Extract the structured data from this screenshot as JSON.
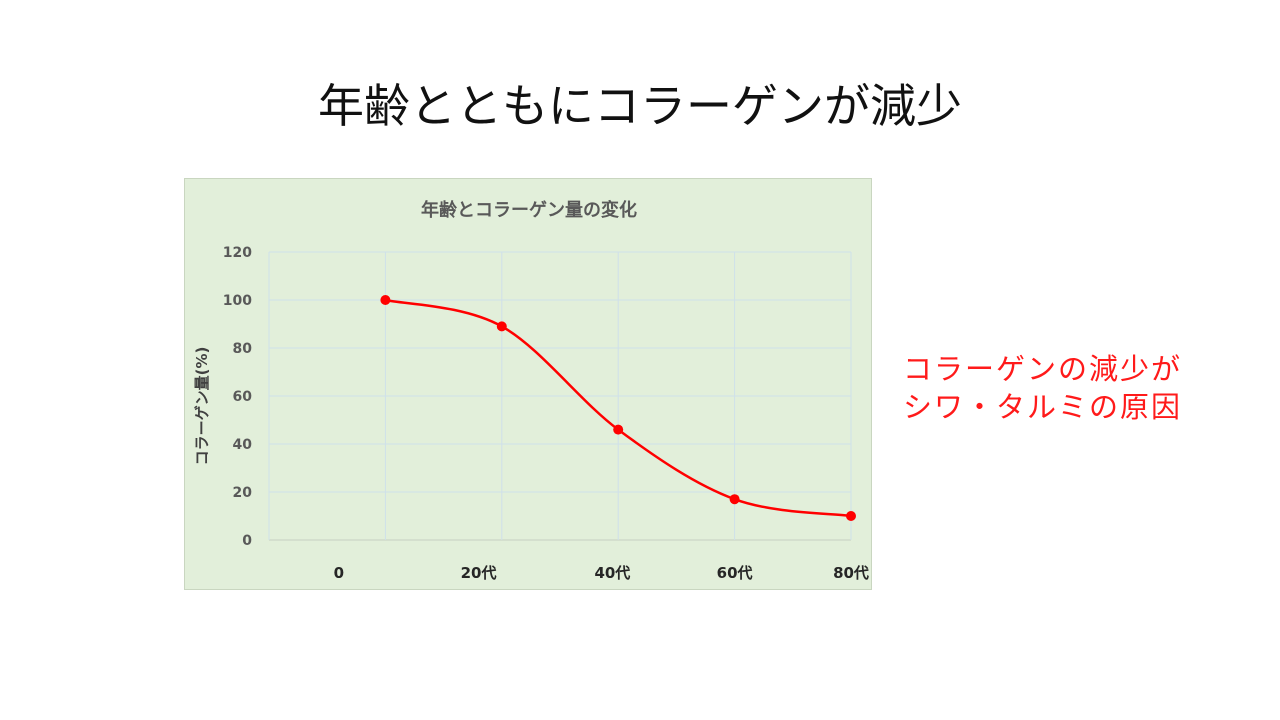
{
  "slide": {
    "title": "年齢とともにコラーゲンが減少"
  },
  "side_note": {
    "line1": "コラーゲンの減少が",
    "line2": "シワ・タルミの原因",
    "color": "#ff1a1a"
  },
  "chart_data": {
    "type": "line",
    "title": "年齢とコラーゲン量の変化",
    "xlabel": "",
    "ylabel": "コラーゲン量(%)",
    "ylim": [
      0,
      120
    ],
    "yticks": [
      0,
      20,
      40,
      60,
      80,
      100,
      120
    ],
    "x_tick_labels": [
      "0",
      "20代",
      "40代",
      "60代",
      "80代"
    ],
    "smooth": true,
    "grid": true,
    "background": "#e2efda",
    "series": [
      {
        "color": "#ff0000",
        "points": [
          {
            "x": 1,
            "y": 100
          },
          {
            "x": 2,
            "y": 89
          },
          {
            "x": 3,
            "y": 46
          },
          {
            "x": 4,
            "y": 17
          },
          {
            "x": 5,
            "y": 10
          }
        ]
      }
    ]
  }
}
